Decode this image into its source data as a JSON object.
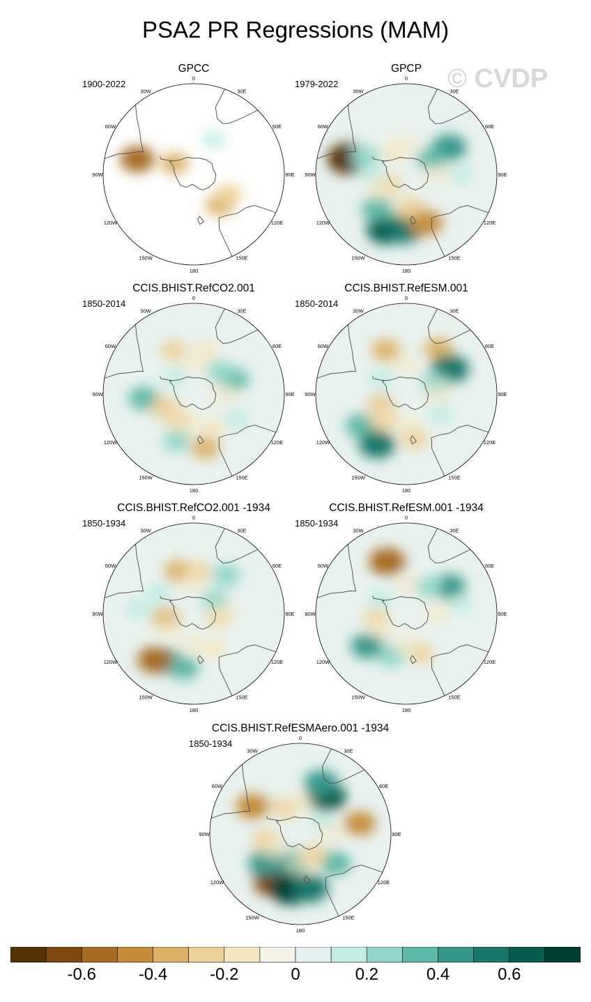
{
  "page_title": "PSA2 PR Regressions (MAM)",
  "watermark": "© CVDP",
  "chart_data": {
    "type": "heatmap",
    "title": "PSA2 PR Regressions (MAM)",
    "projection": "south polar stereographic",
    "panels": [
      {
        "name": "GPCC",
        "period": "1900-2022",
        "coverage": "land-only",
        "anomalies": [
          [
            -75,
            58,
            -0.5
          ],
          [
            -60,
            22,
            -0.3
          ],
          [
            140,
            40,
            -0.3
          ],
          [
            120,
            40,
            -0.25
          ],
          [
            30,
            40,
            0.12
          ]
        ]
      },
      {
        "name": "GPCP",
        "period": "1979-2022",
        "coverage": "full",
        "anomalies": [
          [
            -75,
            60,
            -0.7
          ],
          [
            -67,
            45,
            0.3
          ],
          [
            58,
            50,
            0.5
          ],
          [
            60,
            30,
            0.35
          ],
          [
            -160,
            58,
            0.65
          ],
          [
            -178,
            55,
            0.55
          ],
          [
            -140,
            45,
            0.4
          ],
          [
            158,
            52,
            -0.45
          ],
          [
            172,
            35,
            -0.3
          ],
          [
            -120,
            20,
            -0.2
          ],
          [
            -30,
            25,
            -0.15
          ],
          [
            90,
            55,
            0.15
          ],
          [
            -90,
            35,
            0.2
          ]
        ]
      },
      {
        "name": "CCIS.BHIST.RefCO2.001",
        "period": "1850-2014",
        "coverage": "full",
        "anomalies": [
          [
            -25,
            48,
            -0.2
          ],
          [
            15,
            45,
            -0.15
          ],
          [
            70,
            42,
            0.35
          ],
          [
            50,
            35,
            0.25
          ],
          [
            -95,
            50,
            0.35
          ],
          [
            -115,
            32,
            -0.3
          ],
          [
            -150,
            30,
            -0.25
          ],
          [
            168,
            55,
            -0.3
          ],
          [
            150,
            40,
            -0.15
          ],
          [
            -160,
            50,
            0.25
          ],
          [
            -50,
            25,
            0.15
          ],
          [
            120,
            50,
            0.2
          ]
        ]
      },
      {
        "name": "CCIS.BHIST.RefESM.001",
        "period": "1850-2014",
        "coverage": "full",
        "anomalies": [
          [
            -25,
            48,
            -0.3
          ],
          [
            35,
            55,
            -0.3
          ],
          [
            60,
            50,
            0.6
          ],
          [
            70,
            30,
            0.3
          ],
          [
            -125,
            55,
            0.4
          ],
          [
            -150,
            58,
            0.55
          ],
          [
            -115,
            28,
            -0.3
          ],
          [
            -140,
            35,
            -0.25
          ],
          [
            170,
            45,
            -0.25
          ],
          [
            -60,
            30,
            0.2
          ],
          [
            120,
            40,
            0.15
          ]
        ]
      },
      {
        "name": "CCIS.BHIST.RefCO2.001 -1934",
        "period": "1850-1934",
        "coverage": "full",
        "anomalies": [
          [
            -20,
            45,
            -0.3
          ],
          [
            5,
            42,
            -0.2
          ],
          [
            40,
            50,
            0.3
          ],
          [
            58,
            25,
            0.25
          ],
          [
            -150,
            55,
            0.45
          ],
          [
            -170,
            55,
            0.35
          ],
          [
            -140,
            60,
            -0.5
          ],
          [
            -100,
            28,
            -0.3
          ],
          [
            100,
            25,
            -0.2
          ],
          [
            150,
            40,
            -0.15
          ],
          [
            -60,
            40,
            0.2
          ],
          [
            -85,
            55,
            0.2
          ]
        ]
      },
      {
        "name": "CCIS.BHIST.RefESM.001 -1934",
        "period": "1850-1934",
        "coverage": "full",
        "anomalies": [
          [
            -20,
            55,
            -0.55
          ],
          [
            58,
            50,
            0.45
          ],
          [
            40,
            35,
            0.25
          ],
          [
            -130,
            50,
            0.45
          ],
          [
            -160,
            45,
            0.3
          ],
          [
            -100,
            30,
            -0.2
          ],
          [
            160,
            42,
            -0.2
          ],
          [
            -60,
            30,
            0.2
          ],
          [
            80,
            55,
            0.15
          ]
        ]
      },
      {
        "name": "CCIS.BHIST.RefESMAero.001 -1934",
        "period": "1850-1934",
        "coverage": "full",
        "anomalies": [
          [
            35,
            45,
            0.65
          ],
          [
            22,
            55,
            0.45
          ],
          [
            80,
            60,
            -0.4
          ],
          [
            -60,
            55,
            -0.45
          ],
          [
            -30,
            30,
            -0.25
          ],
          [
            -150,
            55,
            -0.6
          ],
          [
            -170,
            55,
            0.75
          ],
          [
            170,
            55,
            0.55
          ],
          [
            -165,
            30,
            0.45
          ],
          [
            -130,
            45,
            0.5
          ],
          [
            130,
            45,
            0.4
          ],
          [
            -100,
            35,
            -0.25
          ],
          [
            150,
            25,
            -0.25
          ],
          [
            60,
            25,
            0.2
          ]
        ]
      }
    ],
    "lon_labels": [
      "0",
      "30E",
      "60E",
      "90E",
      "120E",
      "150E",
      "180",
      "150W",
      "120W",
      "90W",
      "60W",
      "30W"
    ],
    "colorbar": {
      "levels": [
        -0.7,
        -0.6,
        -0.5,
        -0.4,
        -0.3,
        -0.2,
        -0.1,
        0,
        0.1,
        0.2,
        0.3,
        0.4,
        0.5,
        0.6,
        0.7
      ],
      "colors": [
        "#543005",
        "#7f4710",
        "#a66b22",
        "#c48b38",
        "#dcb26a",
        "#edd19a",
        "#f5e6c2",
        "#f4f1e6",
        "#e4f0ef",
        "#c5ece3",
        "#93d6c9",
        "#5fb8a8",
        "#35968a",
        "#19776a",
        "#065d4e",
        "#003c30"
      ],
      "tick_labels": [
        "-0.6",
        "-0.4",
        "-0.2",
        "0",
        "0.2",
        "0.4",
        "0.6"
      ],
      "tick_values": [
        -0.6,
        -0.4,
        -0.2,
        0,
        0.2,
        0.4,
        0.6
      ]
    }
  }
}
